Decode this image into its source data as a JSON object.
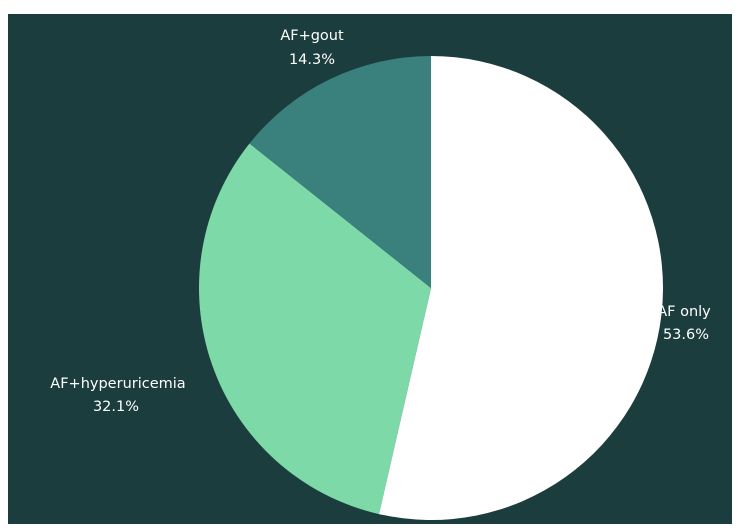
{
  "colors": {
    "background": "#1b3d3d",
    "slice_af_only": "#ffffff",
    "slice_af_hyperuricemia": "#7dd9a8",
    "slice_af_gout": "#3a807d",
    "label_text": "#ffffff"
  },
  "chart_data": {
    "type": "pie",
    "categories": [
      "AF only",
      "AF+hyperuricemia",
      "AF+gout"
    ],
    "values": [
      53.6,
      32.1,
      14.3
    ],
    "value_labels": [
      "53.6%",
      "32.1%",
      "14.3%"
    ],
    "start_angle_deg": 0,
    "direction": "clockwise",
    "legend": "none"
  }
}
